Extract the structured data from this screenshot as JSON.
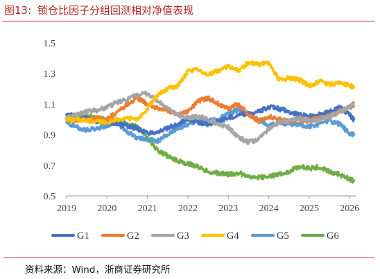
{
  "header": {
    "figure_label": "图13:",
    "title": "锁仓比因子分组回测相对净值表现"
  },
  "source": "资料来源：Wind，浙商证券研究所",
  "chart_data": {
    "type": "line",
    "title": "锁仓比因子分组回测相对净值表现",
    "xlabel": "",
    "ylabel": "",
    "xlim": [
      2019.0,
      2026.15
    ],
    "ylim": [
      0.5,
      1.5
    ],
    "yticks": [
      0.5,
      0.7,
      0.9,
      1.1,
      1.3,
      1.5
    ],
    "xticks": [
      2019,
      2020,
      2021,
      2022,
      2023,
      2024,
      2025,
      2026
    ],
    "grid": false,
    "legend": "bottom",
    "x": [
      2019.0,
      2019.25,
      2019.5,
      2019.75,
      2020.0,
      2020.25,
      2020.5,
      2020.75,
      2021.0,
      2021.25,
      2021.5,
      2021.75,
      2022.0,
      2022.25,
      2022.5,
      2022.75,
      2023.0,
      2023.25,
      2023.5,
      2023.75,
      2024.0,
      2024.25,
      2024.5,
      2024.75,
      2025.0,
      2025.25,
      2025.5,
      2025.75,
      2026.0,
      2026.1
    ],
    "series": [
      {
        "name": "G1",
        "color": "#4472c4",
        "values": [
          1.03,
          1.02,
          1.01,
          0.99,
          0.98,
          0.97,
          0.96,
          0.94,
          0.91,
          0.92,
          0.94,
          0.97,
          1.0,
          0.98,
          0.97,
          0.99,
          1.01,
          1.03,
          1.04,
          1.05,
          1.08,
          1.07,
          1.05,
          1.03,
          1.02,
          1.03,
          1.05,
          1.08,
          1.03,
          1.0
        ]
      },
      {
        "name": "G2",
        "color": "#ed7d31",
        "values": [
          1.0,
          0.99,
          1.0,
          1.01,
          1.0,
          1.05,
          1.1,
          1.14,
          1.1,
          1.07,
          1.06,
          1.03,
          1.05,
          1.12,
          1.14,
          1.1,
          1.07,
          1.1,
          1.03,
          0.99,
          1.02,
          1.0,
          0.99,
          1.0,
          0.99,
          1.01,
          1.02,
          1.05,
          1.08,
          1.09
        ]
      },
      {
        "name": "G3",
        "color": "#a5a5a5",
        "values": [
          1.01,
          1.03,
          1.05,
          1.06,
          1.08,
          1.11,
          1.13,
          1.16,
          1.17,
          1.12,
          1.07,
          1.03,
          1.01,
          1.02,
          1.0,
          0.97,
          0.95,
          0.88,
          0.85,
          0.87,
          0.94,
          0.98,
          0.99,
          1.01,
          0.99,
          1.0,
          1.02,
          1.05,
          1.08,
          1.11
        ]
      },
      {
        "name": "G4",
        "color": "#ffc000",
        "values": [
          1.0,
          1.0,
          0.99,
          0.99,
          0.98,
          1.0,
          1.01,
          1.0,
          1.07,
          1.16,
          1.2,
          1.22,
          1.31,
          1.33,
          1.29,
          1.32,
          1.35,
          1.32,
          1.37,
          1.36,
          1.37,
          1.26,
          1.27,
          1.26,
          1.22,
          1.25,
          1.23,
          1.24,
          1.22,
          1.21
        ]
      },
      {
        "name": "G5",
        "color": "#5b9bd5",
        "values": [
          0.98,
          0.95,
          0.93,
          0.94,
          0.96,
          0.98,
          0.92,
          0.88,
          0.87,
          0.86,
          0.9,
          0.94,
          0.97,
          0.99,
          0.99,
          1.0,
          1.04,
          1.06,
          1.04,
          1.0,
          0.96,
          0.98,
          0.97,
          0.97,
          0.95,
          0.97,
          0.99,
          0.97,
          0.91,
          0.9
        ]
      },
      {
        "name": "G6",
        "color": "#70ad47",
        "values": [
          1.0,
          1.01,
          1.02,
          1.01,
          1.0,
          0.99,
          0.97,
          0.95,
          0.88,
          0.8,
          0.76,
          0.73,
          0.71,
          0.69,
          0.66,
          0.65,
          0.64,
          0.65,
          0.63,
          0.62,
          0.63,
          0.64,
          0.66,
          0.69,
          0.68,
          0.69,
          0.66,
          0.64,
          0.61,
          0.6
        ]
      }
    ]
  }
}
